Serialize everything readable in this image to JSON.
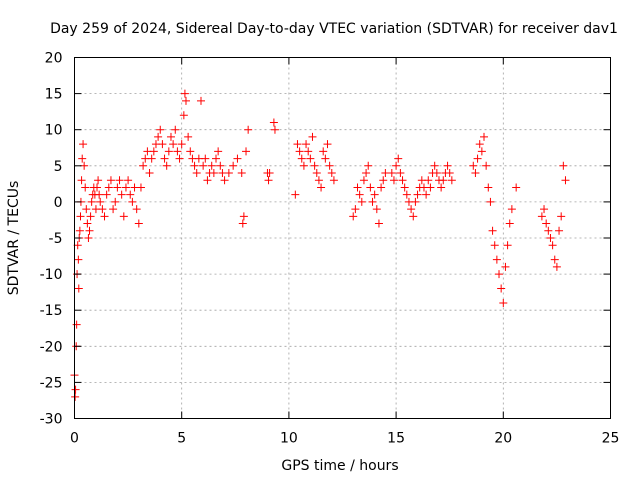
{
  "chart_data": {
    "type": "scatter",
    "title": "Day 259 of 2024, Sidereal Day-to-day VTEC variation (SDTVAR) for receiver dav1",
    "xlabel": "GPS time / hours",
    "ylabel": "SDTVAR / TECUs",
    "xlim": [
      0,
      25
    ],
    "ylim": [
      -30,
      20
    ],
    "xticks": [
      0,
      5,
      10,
      15,
      20,
      25
    ],
    "yticks": [
      -30,
      -25,
      -20,
      -15,
      -10,
      -5,
      0,
      5,
      10,
      15,
      20
    ],
    "grid": true,
    "marker": "+",
    "color": "#ff0000",
    "series": [
      {
        "name": "SDTVAR",
        "x": [
          0.0,
          0.03,
          0.05,
          0.08,
          0.1,
          0.12,
          0.15,
          0.18,
          0.2,
          0.22,
          0.25,
          0.28,
          0.3,
          0.33,
          0.36,
          0.4,
          0.45,
          0.5,
          0.55,
          0.6,
          0.65,
          0.7,
          0.75,
          0.8,
          0.85,
          0.9,
          0.95,
          1.0,
          1.05,
          1.1,
          1.15,
          1.2,
          1.3,
          1.4,
          1.5,
          1.6,
          1.7,
          1.8,
          1.9,
          2.0,
          2.1,
          2.2,
          2.3,
          2.4,
          2.5,
          2.6,
          2.7,
          2.8,
          2.9,
          3.0,
          3.1,
          3.2,
          3.3,
          3.4,
          3.5,
          3.6,
          3.7,
          3.8,
          3.9,
          4.0,
          4.1,
          4.2,
          4.3,
          4.4,
          4.5,
          4.6,
          4.7,
          4.8,
          4.9,
          5.0,
          5.1,
          5.15,
          5.2,
          5.3,
          5.4,
          5.5,
          5.6,
          5.7,
          5.8,
          5.9,
          6.0,
          6.1,
          6.2,
          6.3,
          6.4,
          6.5,
          6.6,
          6.7,
          6.8,
          6.9,
          7.0,
          7.2,
          7.4,
          7.6,
          7.8,
          7.85,
          7.9,
          8.0,
          8.1,
          9.0,
          9.05,
          9.1,
          9.3,
          9.35,
          10.3,
          10.4,
          10.5,
          10.6,
          10.7,
          10.8,
          10.9,
          11.0,
          11.1,
          11.2,
          11.3,
          11.4,
          11.5,
          11.6,
          11.7,
          11.8,
          11.9,
          12.0,
          12.1,
          13.0,
          13.1,
          13.2,
          13.3,
          13.4,
          13.5,
          13.6,
          13.7,
          13.8,
          13.9,
          14.0,
          14.1,
          14.2,
          14.3,
          14.4,
          14.5,
          14.8,
          14.9,
          15.0,
          15.1,
          15.2,
          15.3,
          15.4,
          15.5,
          15.6,
          15.7,
          15.8,
          15.9,
          16.0,
          16.1,
          16.2,
          16.3,
          16.4,
          16.5,
          16.6,
          16.7,
          16.8,
          16.9,
          17.0,
          17.1,
          17.2,
          17.3,
          17.4,
          17.5,
          17.6,
          18.6,
          18.7,
          18.8,
          18.9,
          19.0,
          19.1,
          19.2,
          19.3,
          19.4,
          19.5,
          19.6,
          19.7,
          19.8,
          19.9,
          20.0,
          20.1,
          20.2,
          20.3,
          20.4,
          20.6,
          21.8,
          21.9,
          22.0,
          22.1,
          22.2,
          22.3,
          22.4,
          22.5,
          22.6,
          22.7,
          22.8,
          22.9
        ],
        "y": [
          -24,
          -27,
          -26,
          -20,
          -17,
          -10,
          -6,
          -8,
          -12,
          -5,
          -4,
          -2,
          0,
          3,
          6,
          8,
          5,
          2,
          -1,
          -3,
          -5,
          -4,
          -2,
          0,
          1,
          2,
          1,
          -1,
          2,
          3,
          1,
          0,
          -1,
          -2,
          1,
          2,
          3,
          -1,
          0,
          2,
          3,
          1,
          -2,
          2,
          3,
          1,
          0,
          2,
          -1,
          -3,
          2,
          5,
          6,
          7,
          4,
          6,
          7,
          8,
          9,
          10,
          8,
          6,
          5,
          7,
          9,
          8,
          10,
          7,
          6,
          8,
          12,
          15,
          14,
          9,
          7,
          6,
          5,
          4,
          6,
          14,
          5,
          6,
          3,
          4,
          5,
          4,
          6,
          7,
          5,
          4,
          3,
          4,
          5,
          6,
          4,
          -3,
          -2,
          7,
          10,
          4,
          3,
          4,
          11,
          10,
          1,
          8,
          7,
          6,
          5,
          8,
          7,
          6,
          9,
          5,
          4,
          3,
          2,
          7,
          6,
          8,
          5,
          4,
          3,
          -2,
          -1,
          2,
          1,
          0,
          3,
          4,
          5,
          2,
          0,
          1,
          -1,
          -3,
          2,
          3,
          4,
          4,
          3,
          5,
          6,
          4,
          3,
          2,
          1,
          0,
          -1,
          -2,
          0,
          1,
          2,
          3,
          2,
          1,
          3,
          2,
          4,
          5,
          4,
          3,
          2,
          3,
          4,
          5,
          4,
          3,
          5,
          4,
          6,
          8,
          7,
          9,
          5,
          2,
          0,
          -4,
          -6,
          -8,
          -10,
          -12,
          -14,
          -9,
          -6,
          -3,
          -1,
          2,
          -2,
          -1,
          -3,
          -4,
          -5,
          -6,
          -8,
          -9,
          -4,
          -2,
          5,
          3
        ]
      }
    ]
  }
}
